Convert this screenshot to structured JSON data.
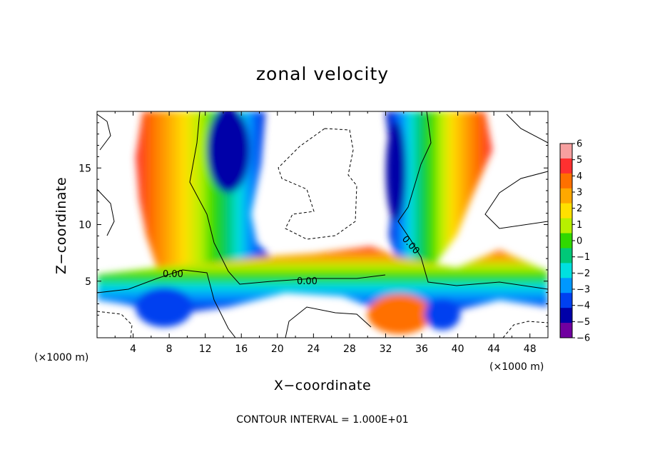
{
  "chart_data": {
    "type": "heatmap",
    "title": "zonal velocity",
    "xlabel": "X−coordinate",
    "ylabel": "Z−coordinate",
    "x_unit": "(×1000 m)",
    "xlim": [
      0,
      50
    ],
    "ylim": [
      0,
      20
    ],
    "x_ticks": [
      4,
      8,
      12,
      16,
      20,
      24,
      28,
      32,
      36,
      40,
      44,
      48
    ],
    "y_ticks": [
      5,
      10,
      15
    ],
    "x_tick_labels": [
      "4",
      "8",
      "12",
      "16",
      "20",
      "24",
      "28",
      "32",
      "36",
      "40",
      "44",
      "48"
    ],
    "y_tick_labels": [
      "5",
      "10",
      "15"
    ],
    "colorbar": {
      "levels": [
        6,
        5,
        4,
        3,
        2,
        1,
        0,
        -1,
        -2,
        -3,
        -4,
        -5,
        -6
      ],
      "labels": [
        "6",
        "5",
        "4",
        "3",
        "2",
        "1",
        "0",
        "−1",
        "−2",
        "−3",
        "−4",
        "−5",
        "−6"
      ],
      "colors": [
        "#f7a0a0",
        "#ff3030",
        "#ff7000",
        "#ffa800",
        "#ffe000",
        "#b8f000",
        "#30d800",
        "#00c878",
        "#00e0e0",
        "#0098ff",
        "#0040f0",
        "#0000a8",
        "#7000a0"
      ]
    },
    "contour_labels": [
      "0.00",
      "0.00",
      "0.00"
    ],
    "contour_interval_text": "CONTOUR INTERVAL = 1.000E+01"
  }
}
